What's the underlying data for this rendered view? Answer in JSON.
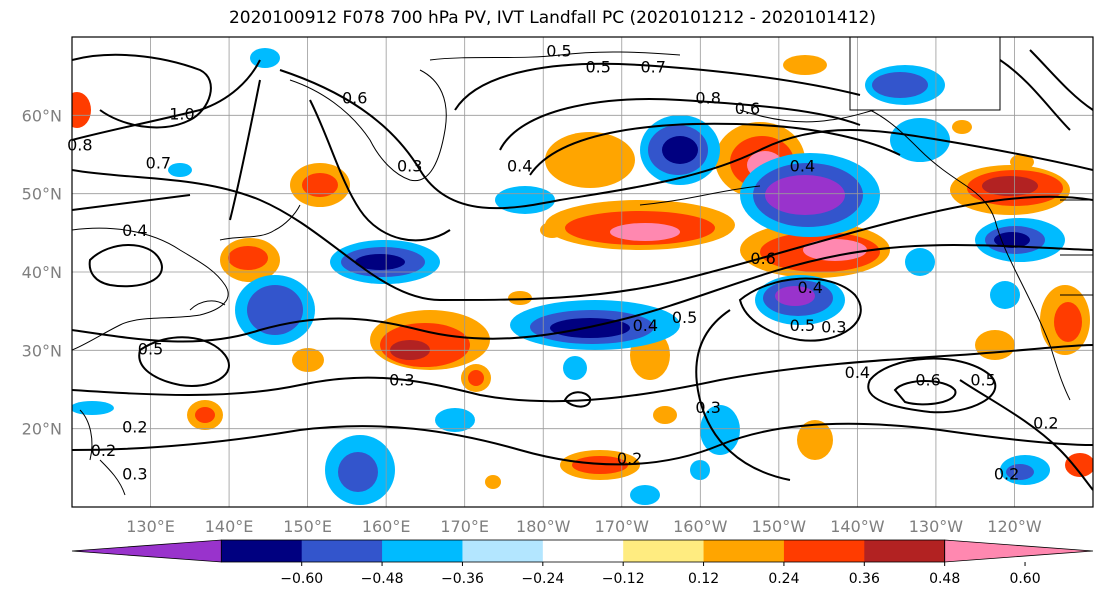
{
  "title": "2020100912 F078 700 hPa PV, IVT Landfall PC (2020101212 - 2020101412)",
  "lat_ticks": [
    "60°N",
    "50°N",
    "40°N",
    "30°N",
    "20°N"
  ],
  "lon_ticks": [
    "130°E",
    "140°E",
    "150°E",
    "160°E",
    "170°E",
    "180°W",
    "170°W",
    "160°W",
    "150°W",
    "140°W",
    "130°W",
    "120°W"
  ],
  "colorbar": {
    "colors": [
      "#9933cc",
      "#000080",
      "#3355cc",
      "#00bbff",
      "#b3e6ff",
      "#ffffff",
      "#ffec80",
      "#ffa500",
      "#ff3c00",
      "#b22222",
      "#ff88b0"
    ],
    "labels": [
      "−0.60",
      "−0.48",
      "−0.36",
      "−0.24",
      "−0.12",
      "0.12",
      "0.24",
      "0.36",
      "0.48",
      "0.60"
    ]
  },
  "contour_labels": [
    {
      "text": "0.5",
      "lat": 67.5,
      "lon": -178
    },
    {
      "text": "0.5",
      "lat": 65.5,
      "lon": -173
    },
    {
      "text": "0.7",
      "lat": 65.5,
      "lon": -166
    },
    {
      "text": "0.8",
      "lat": 61.5,
      "lon": -159
    },
    {
      "text": "0.6",
      "lat": 60.2,
      "lon": -154
    },
    {
      "text": "0.6",
      "lat": 61.5,
      "lon": 156
    },
    {
      "text": "1.0",
      "lat": 59.5,
      "lon": 134
    },
    {
      "text": "0.8",
      "lat": 55.5,
      "lon": 121
    },
    {
      "text": "0.7",
      "lat": 53.2,
      "lon": 131
    },
    {
      "text": "0.3",
      "lat": 52.8,
      "lon": 163
    },
    {
      "text": "0.4",
      "lat": 52.8,
      "lon": 177
    },
    {
      "text": "0.4",
      "lat": 52.8,
      "lon": -147
    },
    {
      "text": "0.4",
      "lat": 44.6,
      "lon": 128
    },
    {
      "text": "0.6",
      "lat": 41.0,
      "lon": -152
    },
    {
      "text": "0.4",
      "lat": 37.3,
      "lon": -146
    },
    {
      "text": "0.5",
      "lat": 32.5,
      "lon": -147
    },
    {
      "text": "0.3",
      "lat": 32.3,
      "lon": -143
    },
    {
      "text": "0.4",
      "lat": 32.5,
      "lon": -167
    },
    {
      "text": "0.5",
      "lat": 33.5,
      "lon": -162
    },
    {
      "text": "0.5",
      "lat": 29.5,
      "lon": 130
    },
    {
      "text": "0.3",
      "lat": 25.5,
      "lon": 162
    },
    {
      "text": "0.4",
      "lat": 26.5,
      "lon": -140
    },
    {
      "text": "0.6",
      "lat": 25.5,
      "lon": -131
    },
    {
      "text": "0.5",
      "lat": 25.5,
      "lon": -124
    },
    {
      "text": "0.2",
      "lat": 19.5,
      "lon": 128
    },
    {
      "text": "0.3",
      "lat": 13.5,
      "lon": 128
    },
    {
      "text": "0.2",
      "lat": 16.5,
      "lon": 124
    },
    {
      "text": "0.2",
      "lat": 15.5,
      "lon": -169
    },
    {
      "text": "0.3",
      "lat": 22.0,
      "lon": -159
    },
    {
      "text": "0.2",
      "lat": 13.5,
      "lon": -121
    },
    {
      "text": "0.2",
      "lat": 20.0,
      "lon": -116
    }
  ]
}
